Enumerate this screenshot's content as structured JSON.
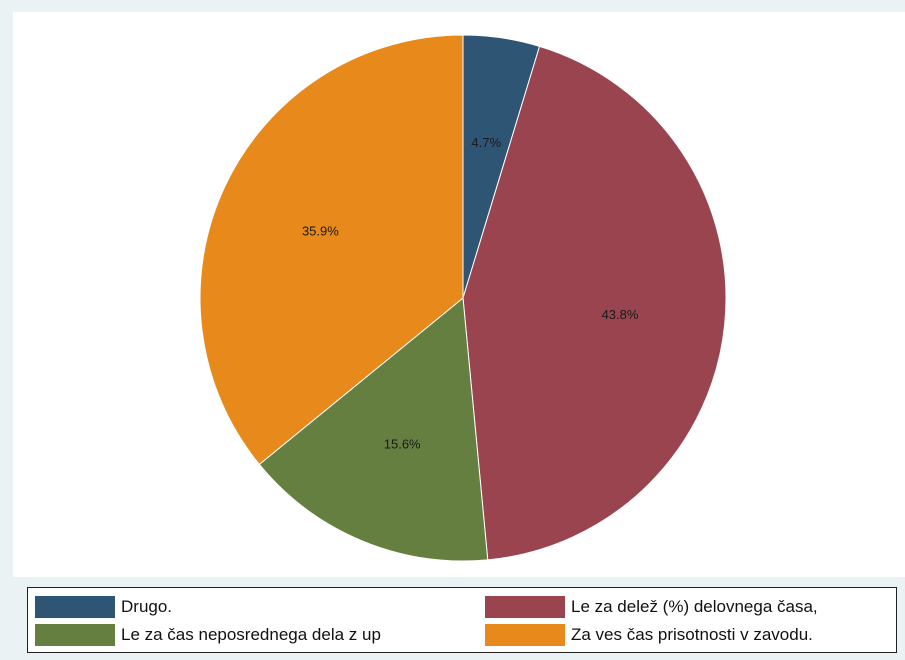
{
  "chart_data": {
    "type": "pie",
    "slices": [
      {
        "label": "Drugo.",
        "value": 4.7,
        "display": "4.7%",
        "color": "#2f5575"
      },
      {
        "label": "Le za delež (%) delovnega časa,",
        "value": 43.8,
        "display": "43.8%",
        "color": "#9a4450"
      },
      {
        "label": "Le za čas neposrednega dela z up",
        "value": 15.6,
        "display": "15.6%",
        "color": "#657f41"
      },
      {
        "label": "Za ves čas prisotnosti v zavodu.",
        "value": 35.9,
        "display": "35.9%",
        "color": "#e78a1b"
      }
    ],
    "start": "12 o'clock",
    "direction": "clockwise",
    "legend_position": "bottom"
  },
  "legend": {
    "items": [
      {
        "label": "Drugo.",
        "color": "#2f5575"
      },
      {
        "label": "Le za delež (%) delovnega časa,",
        "color": "#9a4450"
      },
      {
        "label": "Le za čas neposrednega dela z up",
        "color": "#657f41"
      },
      {
        "label": "Za ves čas prisotnosti v zavodu.",
        "color": "#e78a1b"
      }
    ]
  },
  "colors": {
    "background": "#eaf2f3",
    "plot_background": "#ffffff"
  }
}
